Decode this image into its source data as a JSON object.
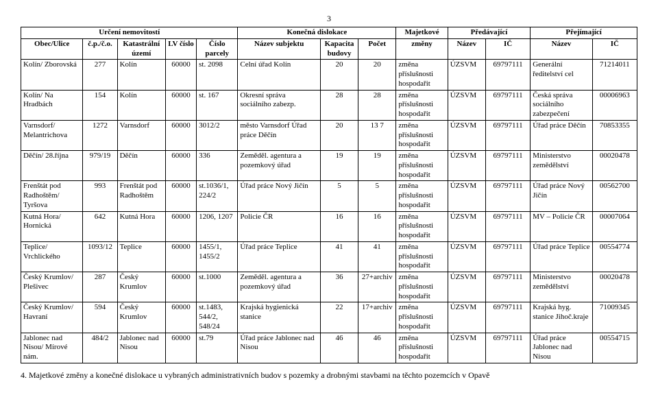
{
  "page_number": "3",
  "header": {
    "group_urceni": "Určení nemovitostí",
    "group_dislokace": "Konečná dislokace",
    "group_majetkove": "Majetkové",
    "group_predavajici": "Předávající",
    "group_prejimajici": "Přejímající",
    "obec": "Obec/Ulice",
    "cpco": "č.p./č.o.",
    "katastralni": "Katastrální území",
    "lv": "LV číslo",
    "parcela": "Číslo parcely",
    "subjekt": "Název subjektu",
    "kapacita": "Kapacita budovy",
    "pocet": "Počet",
    "zmeny": "změny",
    "p_nazev": "Název",
    "p_ic": "IČ",
    "j_nazev": "Název",
    "j_ic": "IČ"
  },
  "rows": [
    {
      "obec": "Kolín/ Zborovská",
      "cpco": "277",
      "kat": "Kolín",
      "lv": "60000",
      "parc": "st. 2098",
      "subj": "Celní úřad Kolín",
      "kap": "20",
      "pocet": "20",
      "zmeny": "změna příslušnosti hospodařit",
      "pn": "ÚZSVM",
      "pic": "69797111",
      "jn": "Generální ředitelství cel",
      "jic": "71214011"
    },
    {
      "obec": "Kolín/ Na Hradbách",
      "cpco": "154",
      "kat": "Kolín",
      "lv": "60000",
      "parc": "st. 167",
      "subj": "Okresní správa sociálního zabezp.",
      "kap": "28",
      "pocet": "28",
      "zmeny": "změna příslušnosti hospodařit",
      "pn": "ÚZSVM",
      "pic": "69797111",
      "jn": "Česká správa sociálního zabezpečení",
      "jic": "00006963"
    },
    {
      "obec": "Varnsdorf/ Melantrichova",
      "cpco": "1272",
      "kat": "Varnsdorf",
      "lv": "60000",
      "parc": "3012/2",
      "subj": "město Varnsdorf Úřad práce Děčín",
      "kap": "20",
      "pocet": "13 7",
      "zmeny": "změna příslušnosti hospodařit",
      "pn": "ÚZSVM",
      "pic": "69797111",
      "jn": "Úřad práce Děčín",
      "jic": "70853355"
    },
    {
      "obec": "Děčín/ 28.října",
      "cpco": "979/19",
      "kat": "Děčín",
      "lv": "60000",
      "parc": "336",
      "subj": "Zeměděl. agentura a pozemkový úřad",
      "kap": "19",
      "pocet": "19",
      "zmeny": "změna příslušnosti hospodařit",
      "pn": "ÚZSVM",
      "pic": "69797111",
      "jn": "Ministerstvo zemědělství",
      "jic": "00020478"
    },
    {
      "obec": "Frenštát pod Radhoštěm/ Tyršova",
      "cpco": "993",
      "kat": "Frenštát pod Radhoštěm",
      "lv": "60000",
      "parc": "st.1036/1, 224/2",
      "subj": "Úřad práce Nový Jičín",
      "kap": "5",
      "pocet": "5",
      "zmeny": "změna příslušnosti hospodařit",
      "pn": "ÚZSVM",
      "pic": "69797111",
      "jn": "Úřad práce Nový Jičín",
      "jic": "00562700"
    },
    {
      "obec": "Kutná Hora/ Hornická",
      "cpco": "642",
      "kat": "Kutná Hora",
      "lv": "60000",
      "parc": "1206, 1207",
      "subj": "Policie ČR",
      "kap": "16",
      "pocet": "16",
      "zmeny": "změna příslušnosti hospodařit",
      "pn": "ÚZSVM",
      "pic": "69797111",
      "jn": "MV – Policie ČR",
      "jic": "00007064"
    },
    {
      "obec": "Teplice/ Vrchlického",
      "cpco": "1093/12",
      "kat": "Teplice",
      "lv": "60000",
      "parc": "1455/1, 1455/2",
      "subj": "Úřad práce Teplice",
      "kap": "41",
      "pocet": "41",
      "zmeny": "změna příslušnosti hospodařit",
      "pn": "ÚZSVM",
      "pic": "69797111",
      "jn": "Úřad práce Teplice",
      "jic": "00554774"
    },
    {
      "obec": "Český Krumlov/ Plešivec",
      "cpco": "287",
      "kat": "Český Krumlov",
      "lv": "60000",
      "parc": "st.1000",
      "subj": "Zeměděl. agentura a pozemkový úřad",
      "kap": "36",
      "pocet": "27+archiv",
      "zmeny": "změna příslušnosti hospodařit",
      "pn": "ÚZSVM",
      "pic": "69797111",
      "jn": "Ministerstvo zemědělství",
      "jic": "00020478"
    },
    {
      "obec": "Český Krumlov/ Havraní",
      "cpco": "594",
      "kat": "Český Krumlov",
      "lv": "60000",
      "parc": "st.1483, 544/2, 548/24",
      "subj": "Krajská hygienická stanice",
      "kap": "22",
      "pocet": "17+archiv",
      "zmeny": "změna příslušnosti hospodařit",
      "pn": "ÚZSVM",
      "pic": "69797111",
      "jn": "Krajská hyg. stanice Jihoč.kraje",
      "jic": "71009345"
    },
    {
      "obec": "Jablonec nad Nisou/ Mírové nám.",
      "cpco": "484/2",
      "kat": "Jablonec nad Nisou",
      "lv": "60000",
      "parc": "st.79",
      "subj": "Úřad práce Jablonec nad Nisou",
      "kap": "46",
      "pocet": "46",
      "zmeny": "změna příslušnosti hospodařit",
      "pn": "ÚZSVM",
      "pic": "69797111",
      "jn": "Úřad práce Jablonec nad Nisou",
      "jic": "00554715"
    }
  ],
  "footer": "4. Majetkové změny a konečné dislokace u vybraných administrativních budov s pozemky a drobnými stavbami na těchto pozemcích v Opavě"
}
